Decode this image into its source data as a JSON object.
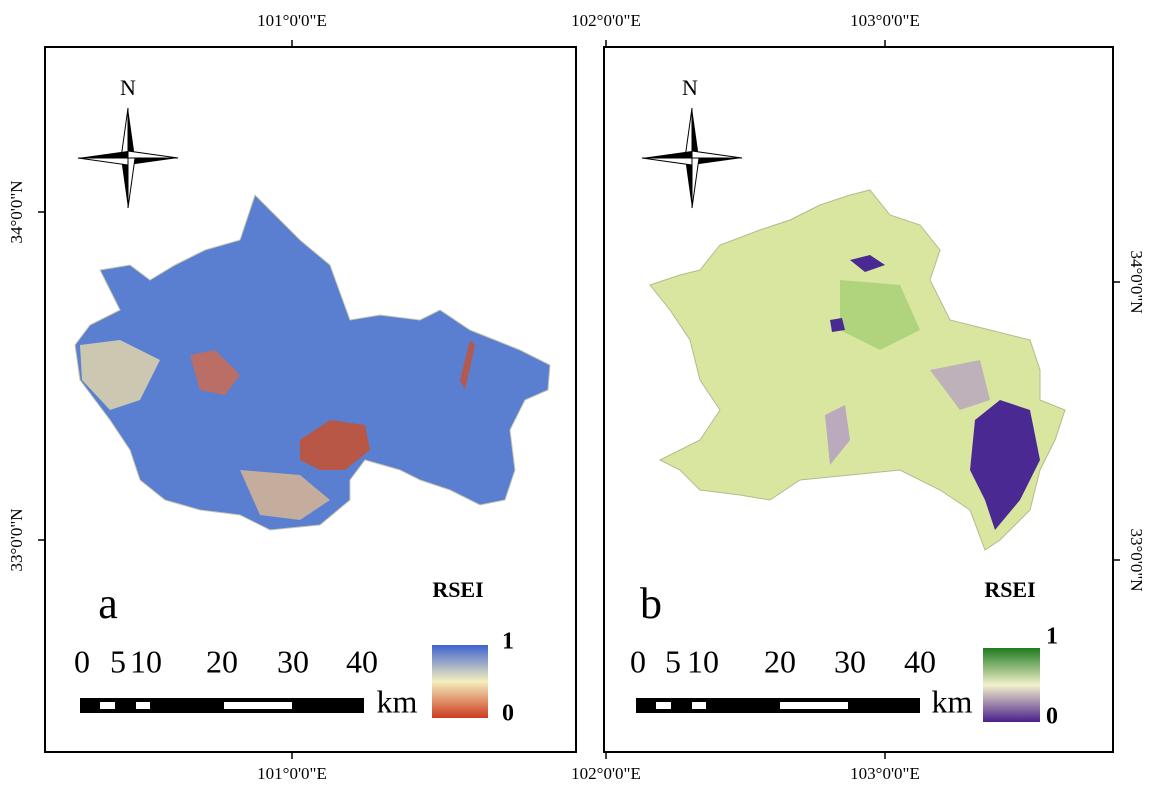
{
  "panels": [
    {
      "label": "a",
      "top_ticks": [
        "101°0'0\"E"
      ],
      "bottom_ticks": [
        "101°0'0\"E"
      ],
      "side_ticks": [
        "34°0'0\"N",
        "33°0'0\"N"
      ],
      "north": "N",
      "legend": {
        "title": "RSEI",
        "max": 1,
        "min": 0
      },
      "scale": {
        "ticks": [
          0,
          5,
          10,
          20,
          30,
          40
        ],
        "unit": "km"
      }
    },
    {
      "label": "b",
      "top_ticks": [
        "102°0'0\"E",
        "103°0'0\"E"
      ],
      "bottom_ticks": [
        "102°0'0\"E",
        "103°0'0\"E"
      ],
      "side_ticks": [
        "34°0'0\"N",
        "33°0'0\"N"
      ],
      "north": "N",
      "legend": {
        "title": "RSEI",
        "max": 1,
        "min": 0
      },
      "scale": {
        "ticks": [
          0,
          5,
          10,
          20,
          30,
          40
        ],
        "unit": "km"
      }
    }
  ]
}
